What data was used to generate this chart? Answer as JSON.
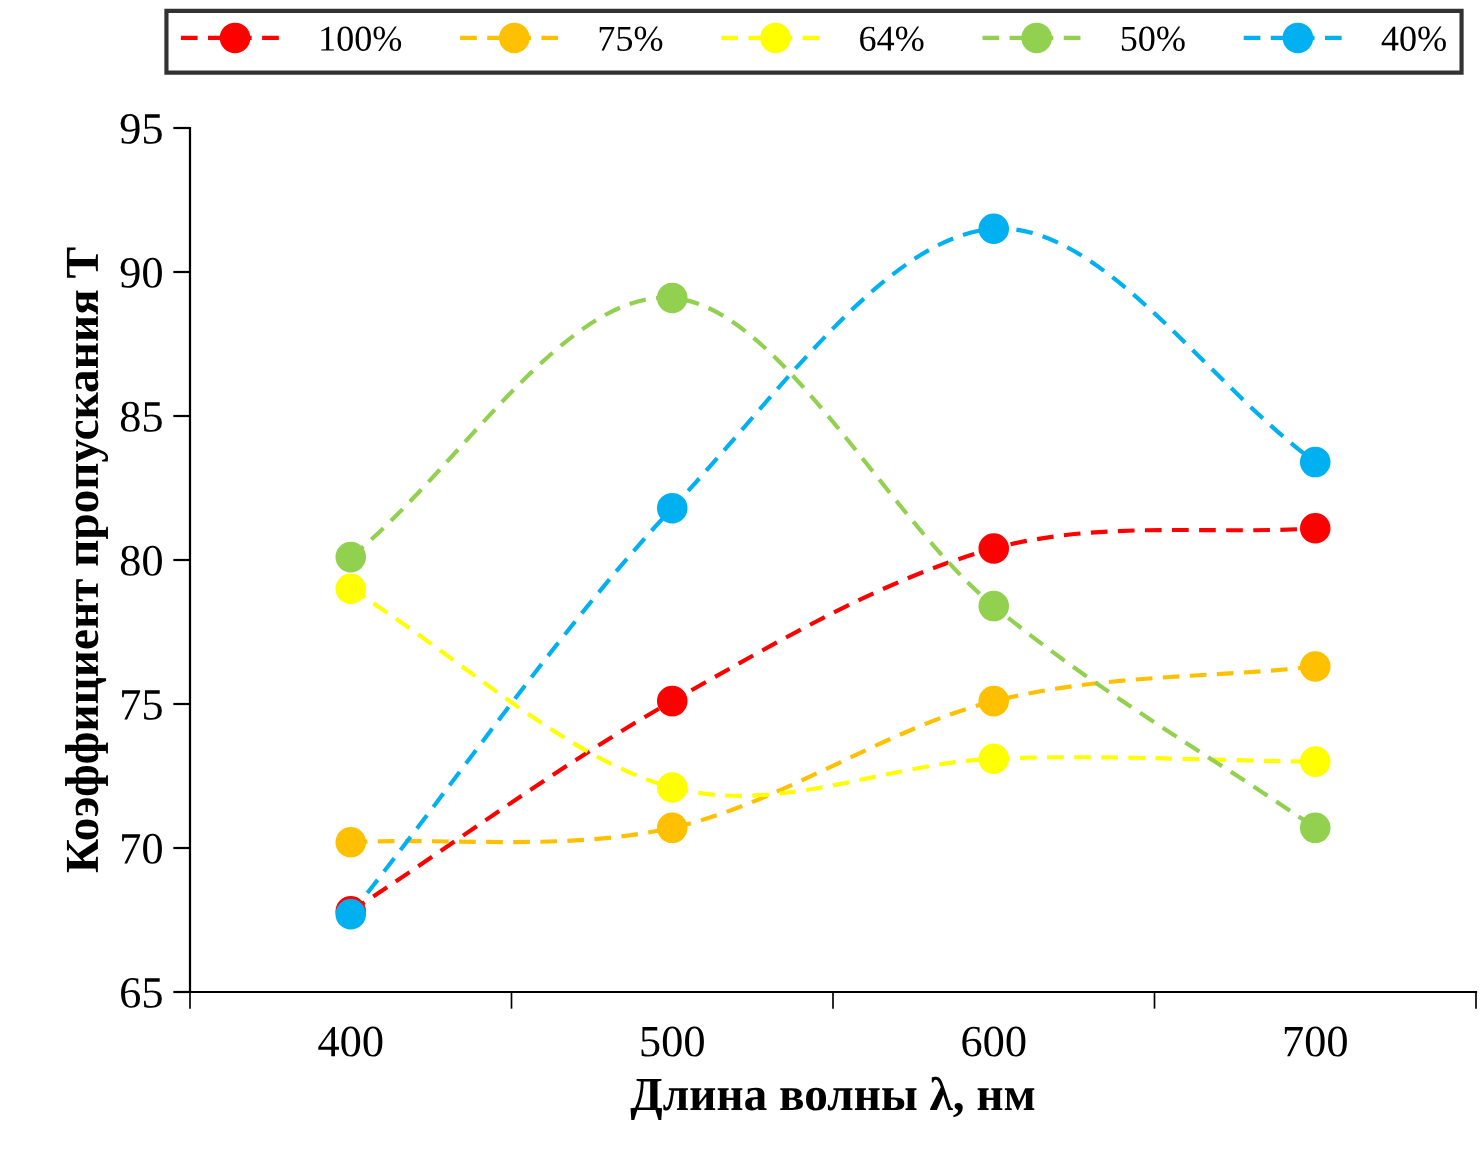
{
  "chart_data": {
    "type": "line",
    "xlabel": "Длина волны λ, нм",
    "ylabel": "Коэффициент пропускания T",
    "categories": [
      "400",
      "500",
      "600",
      "700"
    ],
    "ylim": [
      65,
      95
    ],
    "yticks": [
      65,
      70,
      75,
      80,
      85,
      90,
      95
    ],
    "marker": "circle",
    "line_style": "dashed",
    "grid": false,
    "legend": "top",
    "series": [
      {
        "name": "100%",
        "color": "#ff0000",
        "values": [
          67.8,
          75.1,
          80.4,
          81.1
        ]
      },
      {
        "name": "75%",
        "color": "#ffc000",
        "values": [
          70.2,
          70.7,
          75.1,
          76.3
        ]
      },
      {
        "name": "64%",
        "color": "#ffff00",
        "values": [
          79.0,
          72.1,
          73.1,
          73.0
        ]
      },
      {
        "name": "50%",
        "color": "#92d050",
        "values": [
          80.1,
          89.1,
          78.4,
          70.7
        ]
      },
      {
        "name": "40%",
        "color": "#00b0f0",
        "values": [
          67.7,
          81.8,
          91.5,
          83.4
        ]
      }
    ]
  }
}
